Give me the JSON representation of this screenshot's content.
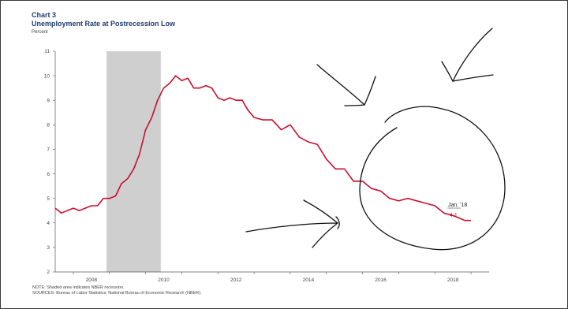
{
  "chart_label": "Chart 3",
  "chart_data": {
    "type": "line",
    "title": "Unemployment Rate at Postrecession Low",
    "ylabel": "Percent",
    "xlabel": "",
    "ylim": [
      2,
      11
    ],
    "yticks": [
      "2",
      "3",
      "4",
      "5",
      "6",
      "7",
      "8",
      "9",
      "10",
      "11"
    ],
    "xlim": [
      2006.5,
      2018.5
    ],
    "xticks": [
      "2008",
      "2010",
      "2012",
      "2014",
      "2016",
      "2018"
    ],
    "recession_shading": [
      2007.92,
      2009.42
    ],
    "series": [
      {
        "color": "#c8102e",
        "x": [
          2006.5,
          2006.67,
          2006.83,
          2007.0,
          2007.17,
          2007.33,
          2007.5,
          2007.67,
          2007.83,
          2008.0,
          2008.17,
          2008.33,
          2008.5,
          2008.67,
          2008.83,
          2009.0,
          2009.17,
          2009.33,
          2009.5,
          2009.67,
          2009.83,
          2010.0,
          2010.17,
          2010.33,
          2010.5,
          2010.67,
          2010.83,
          2011.0,
          2011.17,
          2011.33,
          2011.5,
          2011.67,
          2011.83,
          2012.0,
          2012.25,
          2012.5,
          2012.75,
          2013.0,
          2013.25,
          2013.5,
          2013.75,
          2014.0,
          2014.25,
          2014.5,
          2014.75,
          2015.0,
          2015.25,
          2015.5,
          2015.75,
          2016.0,
          2016.25,
          2016.5,
          2016.75,
          2017.0,
          2017.25,
          2017.5,
          2017.67,
          2017.83,
          2018.0
        ],
        "y": [
          4.6,
          4.4,
          4.5,
          4.6,
          4.5,
          4.6,
          4.7,
          4.7,
          5.0,
          5.0,
          5.1,
          5.6,
          5.8,
          6.2,
          6.8,
          7.8,
          8.3,
          9.0,
          9.5,
          9.7,
          10.0,
          9.8,
          9.9,
          9.5,
          9.5,
          9.6,
          9.5,
          9.1,
          9.0,
          9.1,
          9.0,
          9.0,
          8.6,
          8.3,
          8.2,
          8.2,
          7.8,
          8.0,
          7.5,
          7.3,
          7.2,
          6.6,
          6.2,
          6.2,
          5.7,
          5.7,
          5.4,
          5.3,
          5.0,
          4.9,
          5.0,
          4.9,
          4.8,
          4.7,
          4.4,
          4.3,
          4.2,
          4.1,
          4.1
        ]
      }
    ],
    "annotation": {
      "label": "Jan. '18",
      "value": "4.1"
    },
    "notes": [
      "NOTE: Shaded area indicates NBER recession.",
      "SOURCES: Bureau of Labor Statistics; National Bureau of Economic Research (NBER)."
    ]
  }
}
